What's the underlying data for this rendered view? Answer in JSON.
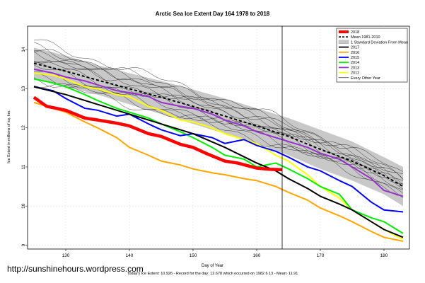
{
  "page": {
    "watermark": "http://sunshinehours.wordpress.com",
    "footer": "Today's Ice Extent: 10.926 - Record for the day: 12.678 which occurred on 1982 6 13 - Mean: 11.91"
  },
  "chart_data": {
    "type": "line",
    "title": "Arctic Sea Ice Extent Day 164 1978 to 2018",
    "xlabel": "Day of Year",
    "ylabel": "Ice Extent in millions of sq. km.",
    "xlim": [
      124,
      184
    ],
    "ylim": [
      8.9,
      14.6
    ],
    "xticks": [
      130,
      140,
      150,
      160,
      170,
      180
    ],
    "yticks": [
      9,
      10,
      11,
      12,
      13,
      14
    ],
    "grid": true,
    "legend_position": "top-right",
    "vline_day": 164,
    "mean_band": {
      "name": "1 Standard Deviation From Mean",
      "color": "#c8c8c8",
      "x": [
        125,
        130,
        135,
        140,
        145,
        150,
        155,
        160,
        165,
        170,
        175,
        180,
        183
      ],
      "upper": [
        14.05,
        13.85,
        13.6,
        13.4,
        13.2,
        12.98,
        12.75,
        12.5,
        12.25,
        11.95,
        11.65,
        11.25,
        11.0
      ],
      "lower": [
        13.25,
        13.05,
        12.85,
        12.6,
        12.35,
        12.1,
        11.85,
        11.6,
        11.3,
        10.95,
        10.65,
        10.3,
        10.0
      ]
    },
    "series": [
      {
        "name": "2018",
        "color": "#ff0000",
        "width": 4.5,
        "x": [
          125,
          127,
          130,
          133,
          135,
          138,
          140,
          143,
          145,
          148,
          150,
          152,
          155,
          157,
          160,
          162,
          164
        ],
        "y": [
          12.78,
          12.55,
          12.45,
          12.25,
          12.2,
          12.12,
          12.05,
          11.85,
          11.78,
          11.58,
          11.5,
          11.35,
          11.15,
          11.1,
          10.97,
          10.94,
          10.93
        ]
      },
      {
        "name": "Mean 1981-2010",
        "color": "#000000",
        "width": 2,
        "dash": "4,3",
        "x": [
          125,
          130,
          135,
          140,
          145,
          150,
          155,
          160,
          165,
          170,
          175,
          180,
          183
        ],
        "y": [
          13.65,
          13.45,
          13.22,
          13.0,
          12.78,
          12.55,
          12.3,
          12.05,
          11.78,
          11.45,
          11.15,
          10.78,
          10.5
        ]
      },
      {
        "name": "2017",
        "color": "#000000",
        "width": 2,
        "x": [
          125,
          130,
          135,
          140,
          145,
          150,
          155,
          160,
          163,
          165,
          168,
          170,
          173,
          175,
          178,
          180,
          183
        ],
        "y": [
          13.05,
          12.85,
          12.6,
          12.35,
          12.1,
          11.85,
          11.5,
          11.1,
          10.9,
          10.7,
          10.45,
          10.25,
          10.05,
          9.9,
          9.6,
          9.4,
          9.2
        ]
      },
      {
        "name": "2016",
        "color": "#ffa500",
        "width": 2,
        "x": [
          125,
          128,
          130,
          133,
          135,
          138,
          140,
          143,
          145,
          148,
          150,
          153,
          155,
          158,
          160,
          163,
          165,
          168,
          170,
          173,
          175,
          178,
          180,
          183
        ],
        "y": [
          12.65,
          12.5,
          12.4,
          12.15,
          12.0,
          11.75,
          11.5,
          11.3,
          11.15,
          11.05,
          10.95,
          10.85,
          10.8,
          10.7,
          10.65,
          10.5,
          10.35,
          10.15,
          9.95,
          9.75,
          9.6,
          9.35,
          9.2,
          9.1
        ]
      },
      {
        "name": "2015",
        "color": "#0000ff",
        "width": 2,
        "x": [
          125,
          128,
          130,
          133,
          135,
          138,
          140,
          143,
          145,
          148,
          150,
          153,
          155,
          158,
          160,
          163,
          165,
          168,
          170,
          173,
          175,
          178,
          180,
          183
        ],
        "y": [
          13.05,
          12.95,
          12.75,
          12.5,
          12.45,
          12.3,
          12.35,
          12.1,
          11.95,
          11.8,
          11.85,
          11.75,
          11.6,
          11.7,
          11.55,
          11.4,
          11.25,
          11.0,
          10.9,
          10.65,
          10.5,
          10.1,
          9.9,
          9.85
        ]
      },
      {
        "name": "2014",
        "color": "#00ee00",
        "width": 2,
        "x": [
          125,
          128,
          130,
          133,
          135,
          138,
          140,
          143,
          145,
          148,
          150,
          153,
          155,
          158,
          160,
          163,
          165,
          168,
          170,
          173,
          175,
          178,
          180,
          183
        ],
        "y": [
          13.25,
          13.15,
          13.05,
          12.85,
          12.7,
          12.5,
          12.4,
          12.25,
          12.1,
          11.9,
          11.75,
          11.5,
          11.3,
          11.2,
          11.0,
          11.1,
          10.95,
          10.7,
          10.5,
          10.3,
          9.9,
          9.7,
          9.6,
          9.3
        ]
      },
      {
        "name": "2013",
        "color": "#9932cc",
        "width": 2,
        "x": [
          125,
          128,
          130,
          133,
          135,
          138,
          140,
          143,
          145,
          148,
          150,
          153,
          155,
          158,
          160,
          163,
          165,
          168,
          170,
          173,
          175,
          178,
          180,
          183
        ],
        "y": [
          13.5,
          13.4,
          13.3,
          13.2,
          13.1,
          12.95,
          12.9,
          12.8,
          12.65,
          12.55,
          12.5,
          12.35,
          12.2,
          12.05,
          11.9,
          11.75,
          11.65,
          11.5,
          11.35,
          11.2,
          11.0,
          10.7,
          10.4,
          10.25
        ]
      },
      {
        "name": "2012",
        "color": "#ffff00",
        "width": 2,
        "x": [
          125,
          128,
          130,
          133,
          135,
          138,
          140,
          143,
          145,
          148,
          150,
          153,
          155,
          158,
          160,
          163,
          165,
          168,
          170,
          173,
          175,
          178,
          180,
          183
        ],
        "y": [
          13.4,
          13.35,
          13.25,
          13.05,
          13.0,
          12.85,
          12.8,
          12.55,
          12.45,
          12.2,
          12.15,
          12.0,
          11.85,
          11.7,
          11.6,
          11.3,
          11.15,
          10.8,
          10.5,
          10.2,
          9.9,
          9.6,
          9.4,
          9.15
        ]
      }
    ],
    "legend_items": [
      {
        "label": "2018",
        "color": "#ff0000",
        "style": "thick"
      },
      {
        "label": "Mean 1981-2010",
        "color": "#000000",
        "style": "dashed"
      },
      {
        "label": "1 Standard Deviation From Mean",
        "color": "#c8c8c8",
        "style": "fill"
      },
      {
        "label": "2017",
        "color": "#000000",
        "style": "line"
      },
      {
        "label": "2016",
        "color": "#ffa500",
        "style": "line"
      },
      {
        "label": "2015",
        "color": "#0000ff",
        "style": "line"
      },
      {
        "label": "2014",
        "color": "#00ee00",
        "style": "line"
      },
      {
        "label": "2013",
        "color": "#9932cc",
        "style": "line"
      },
      {
        "label": "2012",
        "color": "#ffff00",
        "style": "line"
      },
      {
        "label": "Every Other Year",
        "color": "#000000",
        "style": "thin"
      }
    ],
    "other_years": {
      "name": "Every Other Year",
      "color": "#222222",
      "x": [
        125,
        135,
        145,
        155,
        165,
        175,
        183
      ],
      "offsets": [
        0.55,
        0.42,
        0.3,
        0.18,
        0.08,
        -0.02,
        -0.1,
        -0.2,
        -0.28,
        -0.36,
        -0.45,
        0.35,
        0.22
      ]
    }
  }
}
